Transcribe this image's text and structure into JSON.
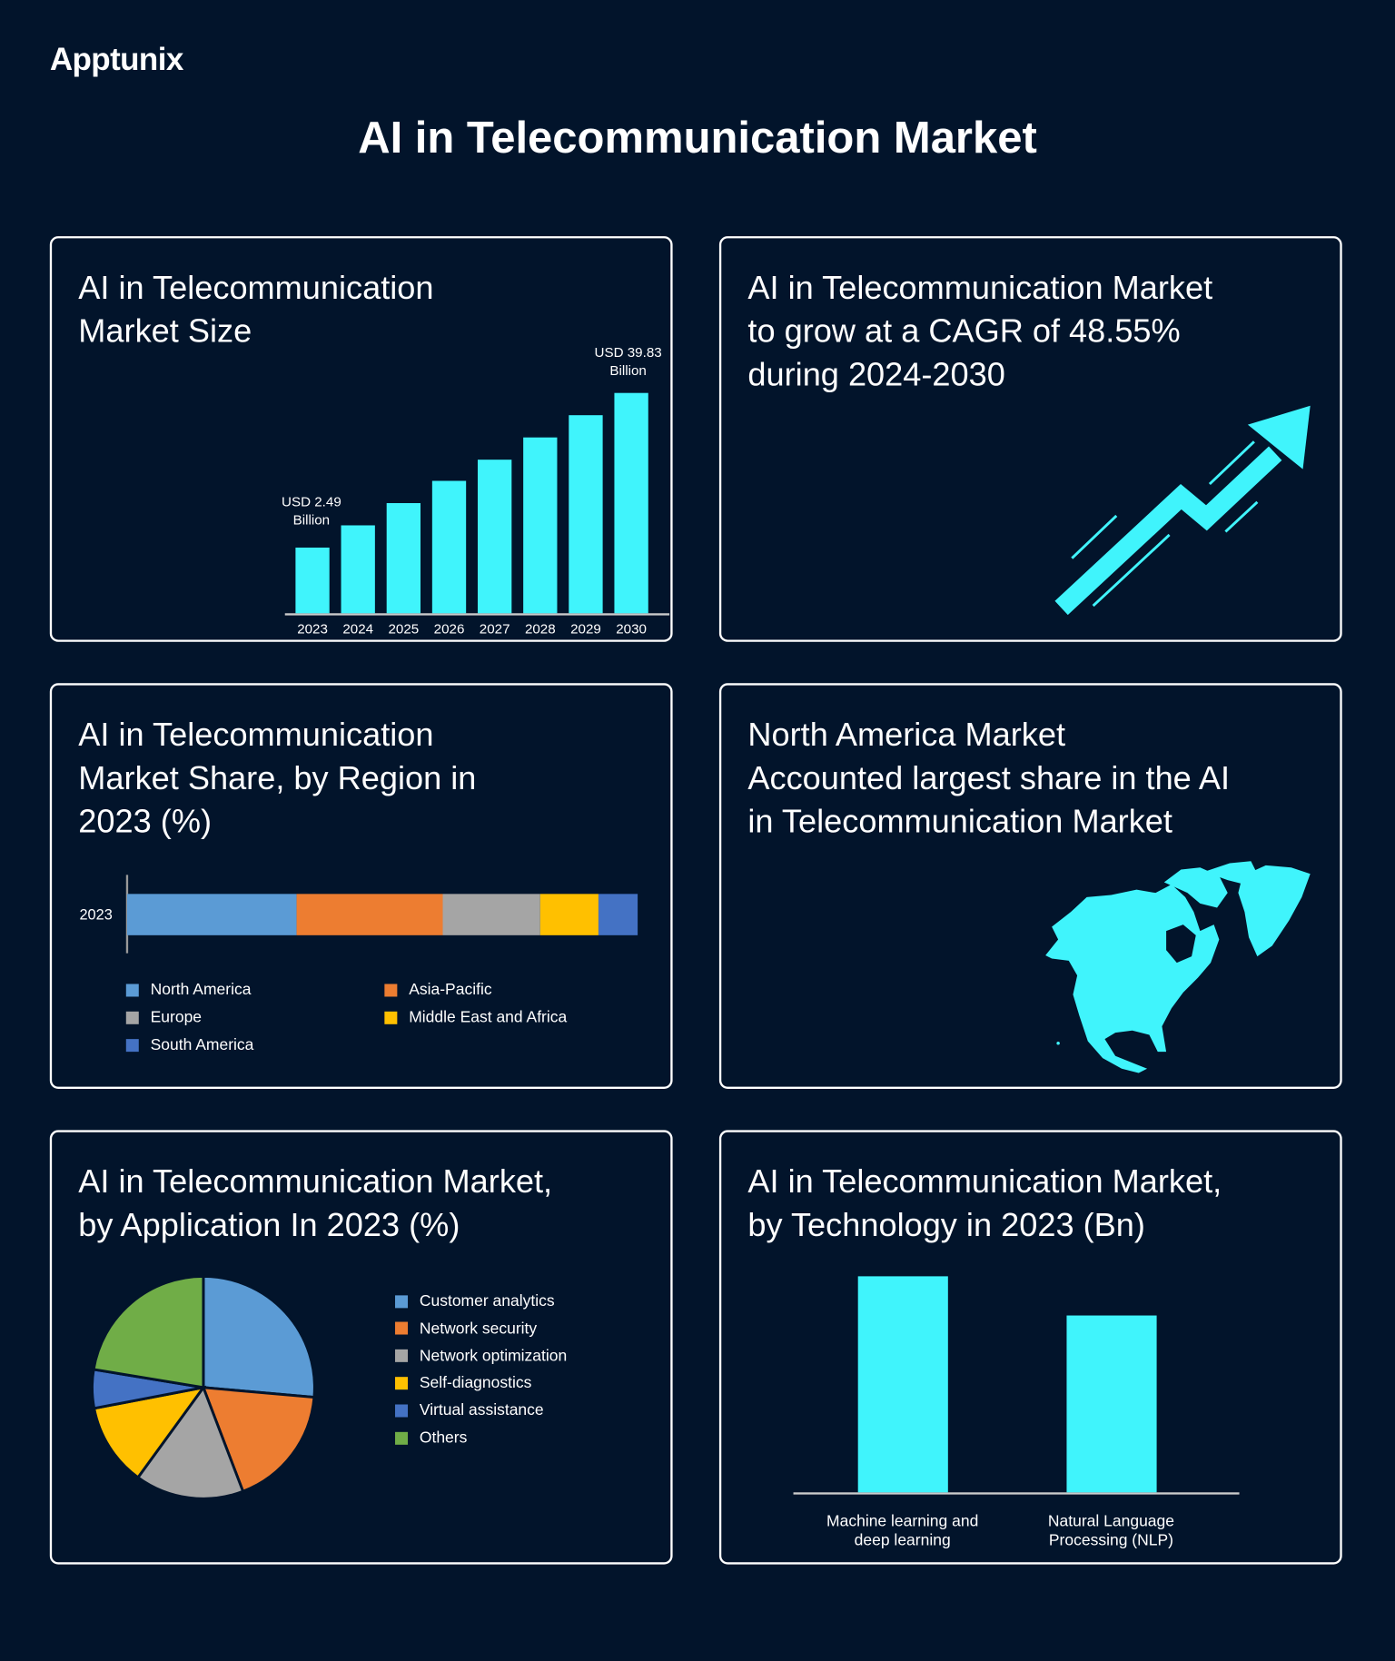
{
  "brand": "Apptunix",
  "title": "AI in Telecommunication Market",
  "colors": {
    "background": "#02142b",
    "accent": "#40f4fc",
    "border": "#ffffff"
  },
  "cards": {
    "market_size": {
      "title": [
        "AI in Telecommunication",
        "Market Size"
      ],
      "first_label": [
        "USD 2.49",
        "Billion"
      ],
      "last_label": [
        "USD 39.83",
        "Billion"
      ]
    },
    "cagr": {
      "title": [
        "AI in Telecommunication Market",
        "to grow at a CAGR of 48.55%",
        "during 2024-2030"
      ],
      "icon": "trending-up-arrow-icon"
    },
    "region": {
      "title": [
        "AI in Telecommunication",
        "Market Share, by Region in",
        "2023 (%)"
      ]
    },
    "north_america": {
      "title": [
        "North America Market",
        "Accounted largest share in the AI",
        "in Telecommunication Market"
      ],
      "icon": "north-america-map-icon"
    },
    "application": {
      "title": [
        "AI in Telecommunication Market,",
        "by Application In 2023 (%)"
      ]
    },
    "technology": {
      "title": [
        "AI in Telecommunication Market,",
        "by Technology in 2023 (Bn)"
      ]
    }
  },
  "chart_data": [
    {
      "type": "bar",
      "title": "AI in Telecommunication Market Size",
      "categories": [
        "2023",
        "2024",
        "2025",
        "2026",
        "2027",
        "2028",
        "2029",
        "2030"
      ],
      "values": [
        2.49,
        7.82,
        13.16,
        18.49,
        23.82,
        29.16,
        34.49,
        39.83
      ],
      "ylim": [
        -13.37,
        39.83
      ],
      "xlabel": "",
      "ylabel": "USD Billion",
      "grid": false
    },
    {
      "type": "bar",
      "stacked": true,
      "orientation": "horizontal",
      "title": "AI in Telecommunication Market Share, by Region in 2023 (%)",
      "categories": [
        "2023"
      ],
      "series": [
        {
          "name": "North America",
          "values": [
            33.2
          ],
          "color": "#5b9bd5"
        },
        {
          "name": "Asia-Pacific",
          "values": [
            28.6
          ],
          "color": "#ed7d31"
        },
        {
          "name": "Europe",
          "values": [
            19.1
          ],
          "color": "#a5a5a5"
        },
        {
          "name": "Middle East and Africa",
          "values": [
            11.4
          ],
          "color": "#ffc000"
        },
        {
          "name": "South America",
          "values": [
            7.7
          ],
          "color": "#4472c4"
        }
      ],
      "legend_order": [
        "North America",
        "Asia-Pacific",
        "Europe",
        "Middle East and Africa",
        "South America"
      ],
      "legend": "bottom"
    },
    {
      "type": "pie",
      "title": "AI in Telecommunication Market, by Application In 2023 (%)",
      "labels": [
        "Customer analytics",
        "Network security",
        "Network optimization",
        "Self-diagnostics",
        "Virtual assistance",
        "Others"
      ],
      "values": [
        26.4,
        17.8,
        15.8,
        12.0,
        5.6,
        22.4
      ],
      "colors": [
        "#5b9bd5",
        "#ed7d31",
        "#a5a5a5",
        "#ffc000",
        "#4472c4",
        "#70ad47"
      ],
      "legend": "right"
    },
    {
      "type": "bar",
      "title": "AI in Telecommunication Market, by Technology in 2023 (Bn)",
      "categories": [
        "Machine learning and deep learning",
        "Natural Language Processing (NLP)"
      ],
      "category_lines": [
        [
          "Machine learning and",
          "deep learning"
        ],
        [
          "Natural Language",
          "Processing (NLP)"
        ]
      ],
      "values": [
        2.04,
        1.67
      ],
      "ylim": [
        0,
        2.04
      ],
      "grid": false
    }
  ]
}
